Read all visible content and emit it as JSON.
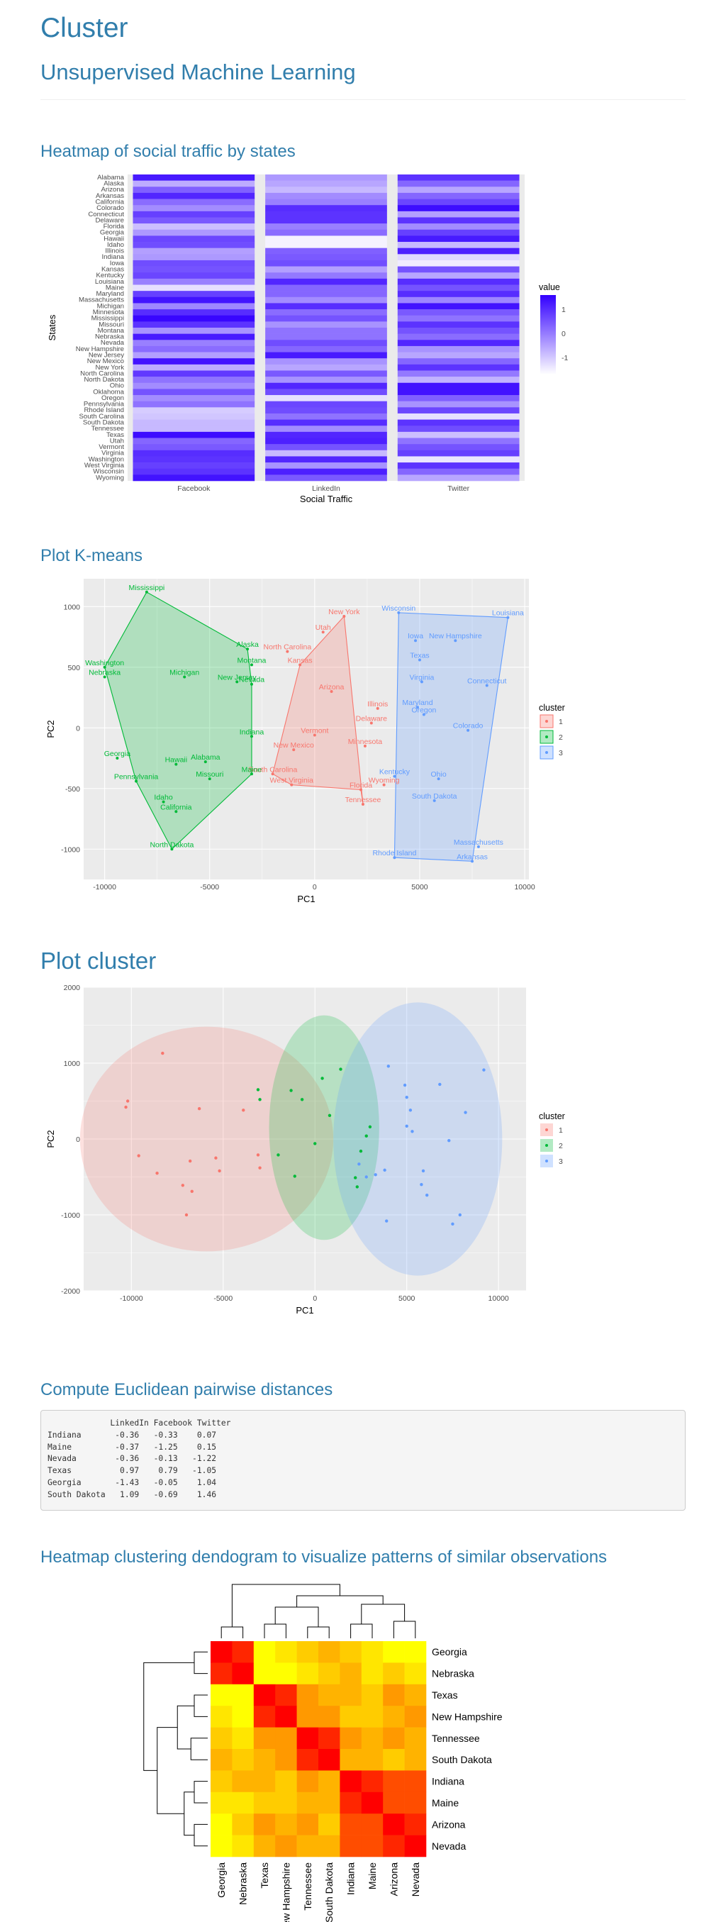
{
  "header": {
    "title": "Cluster",
    "subtitle": "Unsupervised Machine Learning"
  },
  "sections": {
    "heatmap": "Heatmap of social traffic by states",
    "kmeans": "Plot K-means",
    "cluster": "Plot cluster",
    "distances": "Compute Euclidean pairwise distances",
    "dendrogram": "Heatmap clustering dendogram to visualize patterns of similar observations"
  },
  "chart_data": [
    {
      "type": "heatmap",
      "xlabel": "Social Traffic",
      "ylabel": "States",
      "x": [
        "Facebook",
        "LinkedIn",
        "Twitter"
      ],
      "y": [
        "Alabama",
        "Alaska",
        "Arizona",
        "Arkansas",
        "California",
        "Colorado",
        "Connecticut",
        "Delaware",
        "Florida",
        "Georgia",
        "Hawaii",
        "Idaho",
        "Illinois",
        "Indiana",
        "Iowa",
        "Kansas",
        "Kentucky",
        "Louisiana",
        "Maine",
        "Maryland",
        "Massachusetts",
        "Michigan",
        "Minnesota",
        "Mississippi",
        "Missouri",
        "Montana",
        "Nebraska",
        "Nevada",
        "New Hampshire",
        "New Jersey",
        "New Mexico",
        "New York",
        "North Carolina",
        "North Dakota",
        "Ohio",
        "Oklahoma",
        "Oregon",
        "Pennsylvania",
        "Rhode Island",
        "South Carolina",
        "South Dakota",
        "Tennessee",
        "Texas",
        "Utah",
        "Vermont",
        "Virginia",
        "Washington",
        "West Virginia",
        "Wisconsin",
        "Wyoming"
      ],
      "values": [
        [
          1.6,
          -0.4,
          1.2
        ],
        [
          -0.7,
          -0.6,
          0.4
        ],
        [
          0.5,
          -0.9,
          -0.6
        ],
        [
          1.4,
          -0.2,
          0.4
        ],
        [
          0.3,
          0.0,
          0.9
        ],
        [
          -0.2,
          1.3,
          1.8
        ],
        [
          1.0,
          1.2,
          -0.5
        ],
        [
          0.6,
          1.2,
          1.2
        ],
        [
          -1.0,
          0.0,
          -0.2
        ],
        [
          -0.4,
          0.3,
          1.0
        ],
        [
          0.9,
          -1.8,
          1.6
        ],
        [
          0.8,
          -1.8,
          -0.9
        ],
        [
          -0.5,
          0.5,
          1.5
        ],
        [
          -0.4,
          0.6,
          -1.4
        ],
        [
          0.8,
          0.8,
          -1.7
        ],
        [
          0.7,
          -0.5,
          0.7
        ],
        [
          0.9,
          0.1,
          -0.6
        ],
        [
          0.0,
          1.4,
          1.3
        ],
        [
          -1.5,
          0.4,
          0.7
        ],
        [
          1.0,
          0.4,
          1.3
        ],
        [
          1.7,
          -0.2,
          -0.1
        ],
        [
          -0.1,
          1.3,
          1.7
        ],
        [
          1.3,
          0.3,
          0.6
        ],
        [
          1.9,
          0.7,
          0.2
        ],
        [
          1.2,
          -0.3,
          1.2
        ],
        [
          -0.3,
          0.2,
          0.7
        ],
        [
          1.6,
          0.2,
          0.3
        ],
        [
          0.0,
          0.8,
          1.4
        ],
        [
          0.3,
          0.4,
          -0.3
        ],
        [
          -0.5,
          1.6,
          -0.6
        ],
        [
          1.7,
          -0.3,
          0.4
        ],
        [
          -0.7,
          -0.6,
          1.2
        ],
        [
          1.1,
          0.6,
          0.1
        ],
        [
          0.2,
          -0.3,
          -0.8
        ],
        [
          -0.2,
          1.4,
          1.7
        ],
        [
          0.7,
          0.8,
          1.7
        ],
        [
          -0.2,
          -1.5,
          0.5
        ],
        [
          0.2,
          0.9,
          -0.3
        ],
        [
          -1.2,
          0.8,
          0.9
        ],
        [
          -1.1,
          0.2,
          -1.5
        ],
        [
          -0.9,
          1.3,
          1.2
        ],
        [
          -0.9,
          -0.2,
          0.8
        ],
        [
          1.8,
          1.4,
          -1.0
        ],
        [
          0.4,
          1.5,
          0.2
        ],
        [
          0.6,
          0.7,
          0.7
        ],
        [
          1.3,
          -0.9,
          1.0
        ],
        [
          1.2,
          1.4,
          -1.6
        ],
        [
          1.0,
          -0.3,
          1.2
        ],
        [
          1.2,
          1.5,
          0.4
        ],
        [
          1.7,
          0.6,
          -0.6
        ]
      ],
      "legend": {
        "title": "value",
        "ticks": [
          "1",
          "0",
          "-1"
        ],
        "position": "right"
      },
      "colors": {
        "low": "#ffffff",
        "high": "#3300ff"
      }
    },
    {
      "type": "scatter",
      "xlabel": "PC1",
      "ylabel": "PC2",
      "xlim": [
        -11000,
        10200
      ],
      "ylim": [
        -1250,
        1230
      ],
      "xticks": [
        "-10000",
        "-5000",
        "0",
        "5000",
        "10000"
      ],
      "yticks": [
        "1000",
        "500",
        "0",
        "-500",
        "-1000"
      ],
      "legend": {
        "title": "cluster",
        "labels": [
          "1",
          "2",
          "3"
        ],
        "position": "right"
      },
      "colors": [
        "#F8766D",
        "#00BA38",
        "#619CFF"
      ],
      "points": [
        {
          "label": "New York",
          "x": 1400,
          "y": 920,
          "c": 0
        },
        {
          "label": "Utah",
          "x": 400,
          "y": 790,
          "c": 0
        },
        {
          "label": "North Carolina",
          "x": -1300,
          "y": 630,
          "c": 0
        },
        {
          "label": "Kansas",
          "x": -700,
          "y": 520,
          "c": 0
        },
        {
          "label": "Arizona",
          "x": 800,
          "y": 300,
          "c": 0
        },
        {
          "label": "Illinois",
          "x": 3000,
          "y": 160,
          "c": 0
        },
        {
          "label": "Delaware",
          "x": 2700,
          "y": 40,
          "c": 0
        },
        {
          "label": "Vermont",
          "x": 0,
          "y": -60,
          "c": 0
        },
        {
          "label": "Minnesota",
          "x": 2400,
          "y": -150,
          "c": 0
        },
        {
          "label": "New Mexico",
          "x": -1000,
          "y": -180,
          "c": 0
        },
        {
          "label": "South Carolina",
          "x": -2000,
          "y": -380,
          "c": 0
        },
        {
          "label": "West Virginia",
          "x": -1100,
          "y": -470,
          "c": 0
        },
        {
          "label": "Wyoming",
          "x": 3300,
          "y": -470,
          "c": 0
        },
        {
          "label": "Florida",
          "x": 2200,
          "y": -510,
          "c": 0
        },
        {
          "label": "Tennessee",
          "x": 2300,
          "y": -630,
          "c": 0
        },
        {
          "label": "Mississippi",
          "x": -8000,
          "y": 1120,
          "c": 1
        },
        {
          "label": "Alaska",
          "x": -3200,
          "y": 650,
          "c": 1
        },
        {
          "label": "Montana",
          "x": -3000,
          "y": 520,
          "c": 1
        },
        {
          "label": "Washington",
          "x": -10000,
          "y": 500,
          "c": 1
        },
        {
          "label": "Nebraska",
          "x": -10000,
          "y": 420,
          "c": 1
        },
        {
          "label": "Michigan",
          "x": -6200,
          "y": 420,
          "c": 1
        },
        {
          "label": "New Jersey",
          "x": -3700,
          "y": 380,
          "c": 1
        },
        {
          "label": "Nevada",
          "x": -3000,
          "y": 360,
          "c": 1
        },
        {
          "label": "Indiana",
          "x": -3000,
          "y": -70,
          "c": 1
        },
        {
          "label": "Georgia",
          "x": -9400,
          "y": -250,
          "c": 1
        },
        {
          "label": "Hawaii",
          "x": -6600,
          "y": -300,
          "c": 1
        },
        {
          "label": "Alabama",
          "x": -5200,
          "y": -280,
          "c": 1
        },
        {
          "label": "Maine",
          "x": -3000,
          "y": -380,
          "c": 1
        },
        {
          "label": "Missouri",
          "x": -5000,
          "y": -420,
          "c": 1
        },
        {
          "label": "Pennsylvania",
          "x": -8500,
          "y": -440,
          "c": 1
        },
        {
          "label": "Idaho",
          "x": -7200,
          "y": -610,
          "c": 1
        },
        {
          "label": "California",
          "x": -6600,
          "y": -690,
          "c": 1
        },
        {
          "label": "North Dakota",
          "x": -6800,
          "y": -1000,
          "c": 1
        },
        {
          "label": "Wisconsin",
          "x": 4000,
          "y": 950,
          "c": 2
        },
        {
          "label": "Louisiana",
          "x": 9200,
          "y": 910,
          "c": 2
        },
        {
          "label": "Iowa",
          "x": 4800,
          "y": 720,
          "c": 2
        },
        {
          "label": "New Hampshire",
          "x": 6700,
          "y": 720,
          "c": 2
        },
        {
          "label": "Texas",
          "x": 5000,
          "y": 560,
          "c": 2
        },
        {
          "label": "Virginia",
          "x": 5100,
          "y": 380,
          "c": 2
        },
        {
          "label": "Connecticut",
          "x": 8200,
          "y": 350,
          "c": 2
        },
        {
          "label": "Maryland",
          "x": 4900,
          "y": 170,
          "c": 2
        },
        {
          "label": "Oregon",
          "x": 5200,
          "y": 110,
          "c": 2
        },
        {
          "label": "Colorado",
          "x": 7300,
          "y": -20,
          "c": 2
        },
        {
          "label": "Kentucky",
          "x": 3800,
          "y": -400,
          "c": 2
        },
        {
          "label": "Ohio",
          "x": 5900,
          "y": -420,
          "c": 2
        },
        {
          "label": "South Dakota",
          "x": 5700,
          "y": -600,
          "c": 2
        },
        {
          "label": "Massachusetts",
          "x": 7800,
          "y": -980,
          "c": 2
        },
        {
          "label": "Rhode Island",
          "x": 3800,
          "y": -1070,
          "c": 2
        },
        {
          "label": "Arkansas",
          "x": 7500,
          "y": -1100,
          "c": 2
        }
      ],
      "hulls": [
        [
          "New York",
          "Tennessee",
          "Florida",
          "West Virginia",
          "South Carolina",
          "Kansas"
        ],
        [
          "Mississippi",
          "Alaska",
          "Nevada",
          "Maine",
          "North Dakota",
          "Pennsylvania",
          "Washington"
        ],
        [
          "Wisconsin",
          "Louisiana",
          "Arkansas",
          "Rhode Island"
        ]
      ]
    },
    {
      "type": "scatter",
      "xlabel": "PC1",
      "ylabel": "PC2",
      "xlim": [
        -12600,
        11500
      ],
      "ylim": [
        -2000,
        2000
      ],
      "xticks": [
        "-10000",
        "-5000",
        "0",
        "5000",
        "10000"
      ],
      "yticks": [
        "2000",
        "1000",
        "0",
        "-1000",
        "-2000"
      ],
      "legend": {
        "title": "cluster",
        "labels": [
          "1",
          "2",
          "3"
        ],
        "position": "right"
      },
      "colors": [
        "#F8766D",
        "#00BA38",
        "#619CFF"
      ],
      "points": [
        {
          "x": -8300,
          "y": 1130,
          "c": 0
        },
        {
          "x": -10200,
          "y": 500,
          "c": 0
        },
        {
          "x": -10300,
          "y": 420,
          "c": 0
        },
        {
          "x": -6300,
          "y": 400,
          "c": 0
        },
        {
          "x": -3900,
          "y": 380,
          "c": 0
        },
        {
          "x": -3100,
          "y": -210,
          "c": 0
        },
        {
          "x": -9600,
          "y": -220,
          "c": 0
        },
        {
          "x": -6800,
          "y": -290,
          "c": 0
        },
        {
          "x": -5400,
          "y": -250,
          "c": 0
        },
        {
          "x": -5200,
          "y": -420,
          "c": 0
        },
        {
          "x": -8600,
          "y": -450,
          "c": 0
        },
        {
          "x": -3000,
          "y": -380,
          "c": 0
        },
        {
          "x": -7200,
          "y": -610,
          "c": 0
        },
        {
          "x": -6700,
          "y": -690,
          "c": 0
        },
        {
          "x": -7000,
          "y": -1000,
          "c": 0
        },
        {
          "x": -3100,
          "y": 650,
          "c": 1
        },
        {
          "x": -3000,
          "y": 520,
          "c": 1
        },
        {
          "x": -700,
          "y": 520,
          "c": 1
        },
        {
          "x": 400,
          "y": 800,
          "c": 1
        },
        {
          "x": 1400,
          "y": 920,
          "c": 1
        },
        {
          "x": -1300,
          "y": 640,
          "c": 1
        },
        {
          "x": 800,
          "y": 310,
          "c": 1
        },
        {
          "x": -2000,
          "y": -210,
          "c": 1
        },
        {
          "x": 0,
          "y": -60,
          "c": 1
        },
        {
          "x": -1100,
          "y": -490,
          "c": 1
        },
        {
          "x": 2500,
          "y": -160,
          "c": 1
        },
        {
          "x": 3000,
          "y": 160,
          "c": 1
        },
        {
          "x": 2800,
          "y": 40,
          "c": 1
        },
        {
          "x": 2200,
          "y": -510,
          "c": 1
        },
        {
          "x": 2300,
          "y": -630,
          "c": 1
        },
        {
          "x": 4000,
          "y": 960,
          "c": 2
        },
        {
          "x": 9200,
          "y": 910,
          "c": 2
        },
        {
          "x": 4900,
          "y": 710,
          "c": 2
        },
        {
          "x": 6800,
          "y": 720,
          "c": 2
        },
        {
          "x": 5000,
          "y": 550,
          "c": 2
        },
        {
          "x": 5200,
          "y": 380,
          "c": 2
        },
        {
          "x": 8200,
          "y": 350,
          "c": 2
        },
        {
          "x": 5000,
          "y": 170,
          "c": 2
        },
        {
          "x": 5300,
          "y": 100,
          "c": 2
        },
        {
          "x": 7300,
          "y": -20,
          "c": 2
        },
        {
          "x": 3300,
          "y": -470,
          "c": 2
        },
        {
          "x": 3800,
          "y": -410,
          "c": 2
        },
        {
          "x": 5900,
          "y": -420,
          "c": 2
        },
        {
          "x": 5800,
          "y": -600,
          "c": 2
        },
        {
          "x": 7900,
          "y": -1000,
          "c": 2
        },
        {
          "x": 3900,
          "y": -1080,
          "c": 2
        },
        {
          "x": 7500,
          "y": -1120,
          "c": 2
        },
        {
          "x": 2800,
          "y": -500,
          "c": 2
        },
        {
          "x": 6100,
          "y": -740,
          "c": 2
        },
        {
          "x": 2400,
          "y": -330,
          "c": 2
        }
      ],
      "ellipses": [
        {
          "cx": -5900,
          "cy": 0,
          "rx": 6900,
          "ry": 1480,
          "c": 0
        },
        {
          "cx": 500,
          "cy": 150,
          "rx": 3000,
          "ry": 1480,
          "c": 1
        },
        {
          "cx": 5600,
          "cy": 0,
          "rx": 4600,
          "ry": 1800,
          "c": 2
        }
      ]
    },
    {
      "type": "heatmap",
      "labels": [
        "Georgia",
        "Nebraska",
        "Texas",
        "New Hampshire",
        "Tennessee",
        "South Dakota",
        "Indiana",
        "Maine",
        "Arizona",
        "Nevada"
      ],
      "values": [
        [
          0,
          1,
          8,
          7,
          6,
          5,
          6,
          7,
          8,
          8
        ],
        [
          1,
          0,
          8,
          8,
          7,
          6,
          5,
          7,
          6,
          7
        ],
        [
          8,
          8,
          0,
          1,
          4,
          5,
          5,
          6,
          4,
          5
        ],
        [
          7,
          8,
          1,
          0,
          4,
          4,
          6,
          6,
          5,
          4
        ],
        [
          6,
          7,
          4,
          4,
          0,
          1,
          4,
          5,
          4,
          5
        ],
        [
          5,
          6,
          5,
          4,
          1,
          0,
          5,
          5,
          6,
          5
        ],
        [
          6,
          5,
          5,
          6,
          4,
          5,
          0,
          1,
          2,
          2
        ],
        [
          7,
          7,
          6,
          6,
          5,
          5,
          1,
          0,
          2,
          2
        ],
        [
          8,
          6,
          4,
          5,
          4,
          6,
          2,
          2,
          0,
          1
        ],
        [
          8,
          7,
          5,
          4,
          5,
          5,
          2,
          2,
          1,
          0
        ]
      ],
      "colors": {
        "low": "#ff0000",
        "mid": "#ff9900",
        "high": "#ffff00"
      }
    }
  ],
  "distances": {
    "columns": [
      "LinkedIn",
      "Facebook",
      "Twitter"
    ],
    "rows": [
      {
        "name": "Indiana",
        "values": [
          "-0.36",
          "-0.33",
          "0.07"
        ]
      },
      {
        "name": "Maine",
        "values": [
          "-0.37",
          "-1.25",
          "0.15"
        ]
      },
      {
        "name": "Nevada",
        "values": [
          "-0.36",
          "-0.13",
          "-1.22"
        ]
      },
      {
        "name": "Texas",
        "values": [
          "0.97",
          "0.79",
          "-1.05"
        ]
      },
      {
        "name": "Georgia",
        "values": [
          "-1.43",
          "-0.05",
          "1.04"
        ]
      },
      {
        "name": "South Dakota",
        "values": [
          "1.09",
          "-0.69",
          "1.46"
        ]
      }
    ]
  }
}
